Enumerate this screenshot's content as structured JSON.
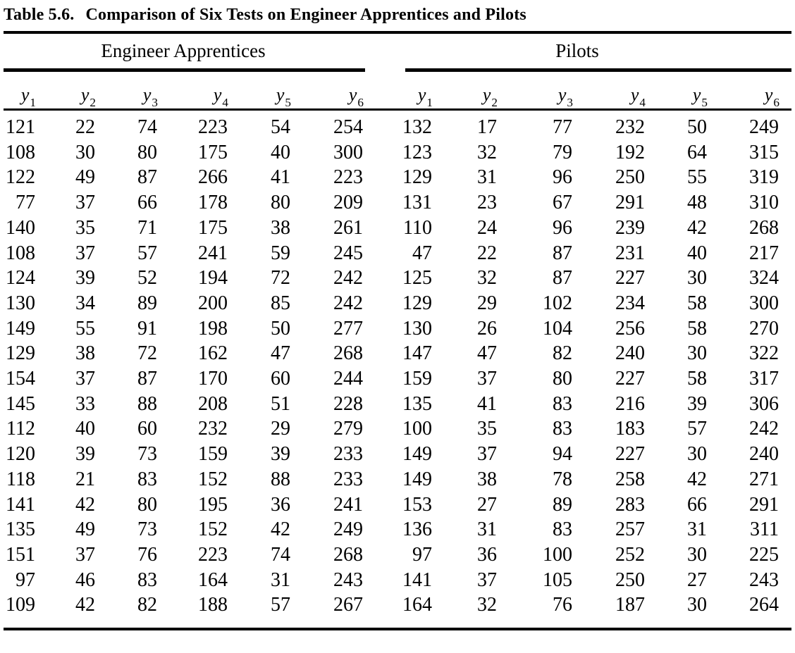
{
  "page": {
    "title_label": "Table 5.6.",
    "title_caption": "Comparison of Six Tests on Engineer Apprentices and Pilots"
  },
  "table": {
    "groups": [
      {
        "key": "engineer_apprentices",
        "label": "Engineer Apprentices"
      },
      {
        "key": "pilots",
        "label": "Pilots"
      }
    ],
    "column_headers": [
      {
        "base": "y",
        "sub": "1"
      },
      {
        "base": "y",
        "sub": "2"
      },
      {
        "base": "y",
        "sub": "3"
      },
      {
        "base": "y",
        "sub": "4"
      },
      {
        "base": "y",
        "sub": "5"
      },
      {
        "base": "y",
        "sub": "6"
      }
    ],
    "rows": [
      {
        "engineer_apprentices": [
          121,
          22,
          74,
          223,
          54,
          254
        ],
        "pilots": [
          132,
          17,
          77,
          232,
          50,
          249
        ]
      },
      {
        "engineer_apprentices": [
          108,
          30,
          80,
          175,
          40,
          300
        ],
        "pilots": [
          123,
          32,
          79,
          192,
          64,
          315
        ]
      },
      {
        "engineer_apprentices": [
          122,
          49,
          87,
          266,
          41,
          223
        ],
        "pilots": [
          129,
          31,
          96,
          250,
          55,
          319
        ]
      },
      {
        "engineer_apprentices": [
          77,
          37,
          66,
          178,
          80,
          209
        ],
        "pilots": [
          131,
          23,
          67,
          291,
          48,
          310
        ]
      },
      {
        "engineer_apprentices": [
          140,
          35,
          71,
          175,
          38,
          261
        ],
        "pilots": [
          110,
          24,
          96,
          239,
          42,
          268
        ]
      },
      {
        "engineer_apprentices": [
          108,
          37,
          57,
          241,
          59,
          245
        ],
        "pilots": [
          47,
          22,
          87,
          231,
          40,
          217
        ]
      },
      {
        "engineer_apprentices": [
          124,
          39,
          52,
          194,
          72,
          242
        ],
        "pilots": [
          125,
          32,
          87,
          227,
          30,
          324
        ]
      },
      {
        "engineer_apprentices": [
          130,
          34,
          89,
          200,
          85,
          242
        ],
        "pilots": [
          129,
          29,
          102,
          234,
          58,
          300
        ]
      },
      {
        "engineer_apprentices": [
          149,
          55,
          91,
          198,
          50,
          277
        ],
        "pilots": [
          130,
          26,
          104,
          256,
          58,
          270
        ]
      },
      {
        "engineer_apprentices": [
          129,
          38,
          72,
          162,
          47,
          268
        ],
        "pilots": [
          147,
          47,
          82,
          240,
          30,
          322
        ]
      },
      {
        "engineer_apprentices": [
          154,
          37,
          87,
          170,
          60,
          244
        ],
        "pilots": [
          159,
          37,
          80,
          227,
          58,
          317
        ]
      },
      {
        "engineer_apprentices": [
          145,
          33,
          88,
          208,
          51,
          228
        ],
        "pilots": [
          135,
          41,
          83,
          216,
          39,
          306
        ]
      },
      {
        "engineer_apprentices": [
          112,
          40,
          60,
          232,
          29,
          279
        ],
        "pilots": [
          100,
          35,
          83,
          183,
          57,
          242
        ]
      },
      {
        "engineer_apprentices": [
          120,
          39,
          73,
          159,
          39,
          233
        ],
        "pilots": [
          149,
          37,
          94,
          227,
          30,
          240
        ]
      },
      {
        "engineer_apprentices": [
          118,
          21,
          83,
          152,
          88,
          233
        ],
        "pilots": [
          149,
          38,
          78,
          258,
          42,
          271
        ]
      },
      {
        "engineer_apprentices": [
          141,
          42,
          80,
          195,
          36,
          241
        ],
        "pilots": [
          153,
          27,
          89,
          283,
          66,
          291
        ]
      },
      {
        "engineer_apprentices": [
          135,
          49,
          73,
          152,
          42,
          249
        ],
        "pilots": [
          136,
          31,
          83,
          257,
          31,
          311
        ]
      },
      {
        "engineer_apprentices": [
          151,
          37,
          76,
          223,
          74,
          268
        ],
        "pilots": [
          97,
          36,
          100,
          252,
          30,
          225
        ]
      },
      {
        "engineer_apprentices": [
          97,
          46,
          83,
          164,
          31,
          243
        ],
        "pilots": [
          141,
          37,
          105,
          250,
          27,
          243
        ]
      },
      {
        "engineer_apprentices": [
          109,
          42,
          82,
          188,
          57,
          267
        ],
        "pilots": [
          164,
          32,
          76,
          187,
          30,
          264
        ]
      }
    ]
  }
}
